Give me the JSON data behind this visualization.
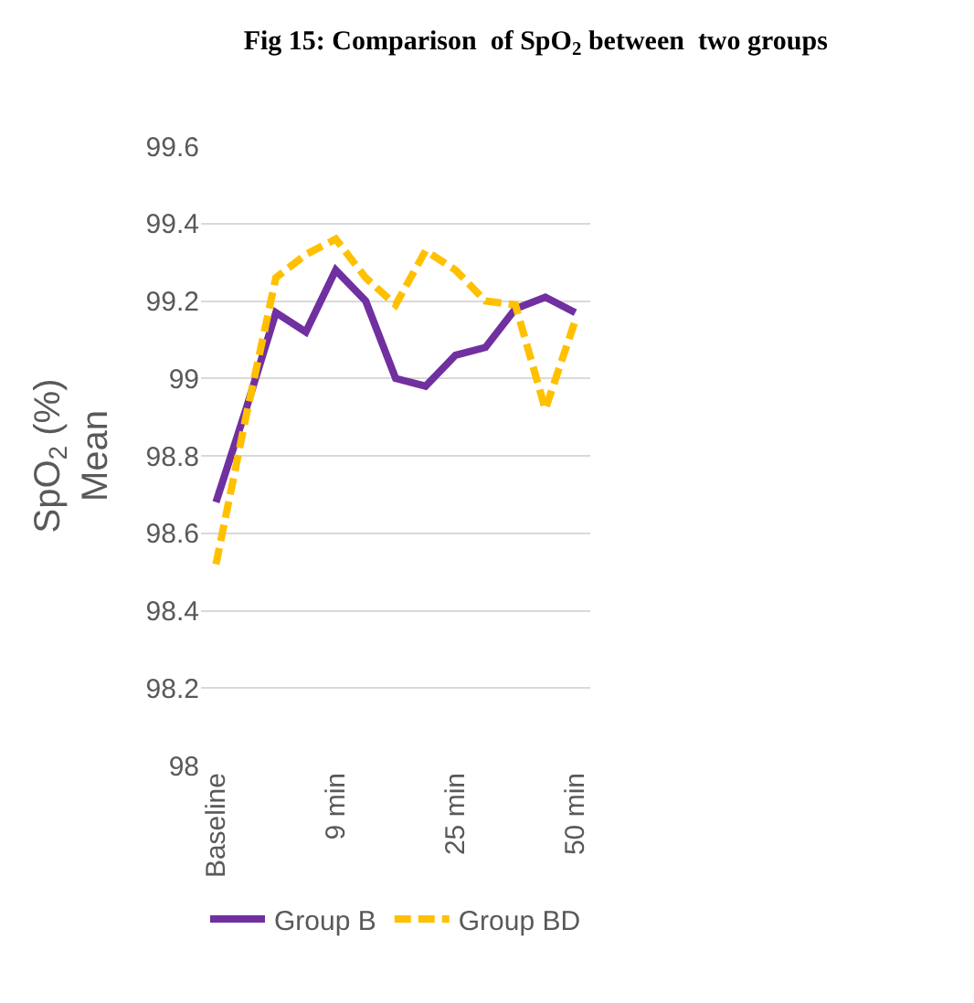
{
  "chart_data": {
    "type": "line",
    "title": "Fig 15: Comparison  of SpO$_{2}$ between  two groups",
    "ylabel": "SpO$_{2}$ (%)\nMean",
    "categories": [
      "Baseline",
      null,
      null,
      null,
      "9 min",
      null,
      null,
      null,
      "25 min",
      null,
      null,
      null,
      "50 min"
    ],
    "ylim": [
      98,
      99.6
    ],
    "yticks": [
      98,
      98.2,
      98.4,
      98.6,
      98.8,
      99,
      99.2,
      99.4,
      99.6
    ],
    "grid": "y",
    "legend": "bottom",
    "marker": "none",
    "series": [
      {
        "name": "Group B",
        "color": "#7030a0",
        "line_style": "solid",
        "values": [
          98.68,
          98.92,
          99.17,
          99.12,
          99.28,
          99.2,
          99.0,
          98.98,
          99.06,
          99.08,
          99.18,
          99.21,
          99.17
        ]
      },
      {
        "name": "Group BD",
        "color": "#ffc000",
        "line_style": "dashed",
        "values": [
          98.52,
          98.9,
          99.26,
          99.32,
          99.36,
          99.26,
          99.19,
          99.33,
          99.28,
          99.2,
          99.19,
          98.92,
          99.15
        ]
      }
    ]
  }
}
